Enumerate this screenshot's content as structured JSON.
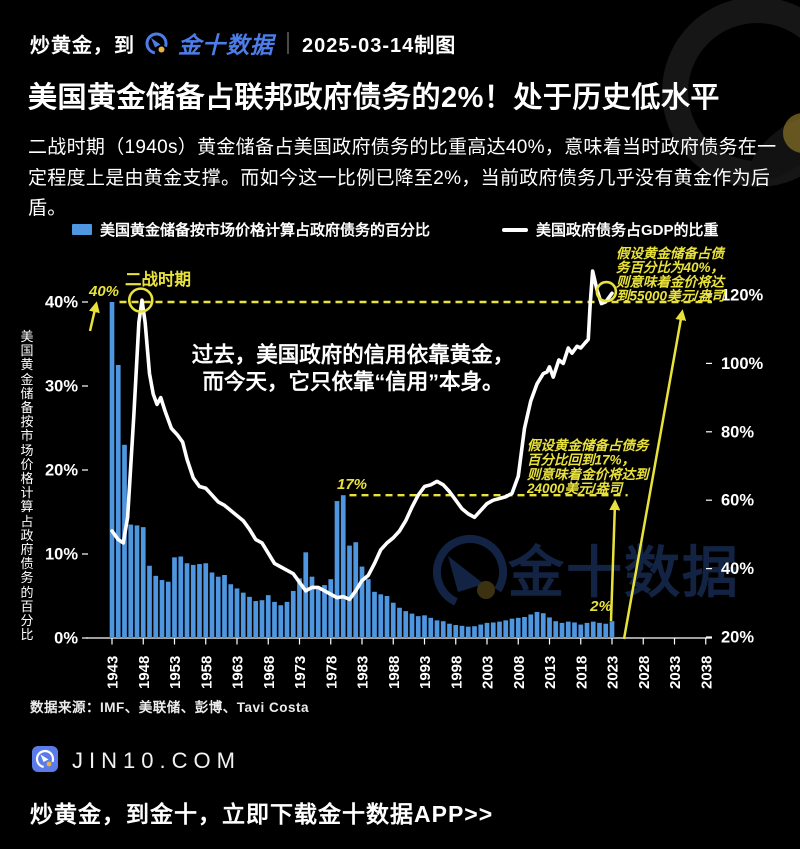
{
  "colors": {
    "yellow": "#e9e23b",
    "bar_blue": "#4e96e0",
    "line_white": "#ffffff",
    "logo_blue": "#4d7de8",
    "watermark_blue": "#24407a",
    "gold": "#8a7526"
  },
  "header": {
    "prefix": "炒黄金，到",
    "logo_text": "金十数据",
    "date_note": "2025-03-14制图"
  },
  "title": "美国黄金储备占联邦政府债务的2%！处于历史低水平",
  "intro": "二战时期（1940s）黄金储备占美国政府债务的比重高达40%，意味着当时政府债务在一定程度上是由黄金支撑。而如今这一比例已降至2%，当前政府债务几乎没有黄金作为后盾。",
  "legend": {
    "bars": "美国黄金储备按市场价格计算占政府债务的百分比",
    "line": "美国政府债务占GDP的比重"
  },
  "chart_data": {
    "type": "combo",
    "bar_series": {
      "name": "美国黄金储备按市场价格计算占政府债务的百分比",
      "axis": "left",
      "unit": "%",
      "start_year": 1943,
      "values": [
        40,
        32.5,
        23,
        13.5,
        13.4,
        13.2,
        8.6,
        7.4,
        6.9,
        6.7,
        9.6,
        9.7,
        8.9,
        8.7,
        8.8,
        8.9,
        7.8,
        7.3,
        7.5,
        6.4,
        5.9,
        5.4,
        4.9,
        4.4,
        4.5,
        5.1,
        4.3,
        3.9,
        4.3,
        5.6,
        7.1,
        10.2,
        7.3,
        6.1,
        6.3,
        7.0,
        16.3,
        17,
        11,
        11.4,
        8.5,
        7,
        5.5,
        5.2,
        5,
        4.2,
        3.6,
        3.2,
        2.9,
        2.6,
        2.7,
        2.4,
        2.1,
        2,
        1.7,
        1.55,
        1.45,
        1.35,
        1.4,
        1.6,
        1.8,
        1.85,
        1.95,
        2.1,
        2.3,
        2.4,
        2.5,
        2.8,
        3.1,
        2.95,
        2.45,
        2,
        1.8,
        1.95,
        1.85,
        1.6,
        1.8,
        1.95,
        1.8,
        1.7,
        2
      ]
    },
    "line_series": {
      "name": "美国政府债务占GDP的比重",
      "axis": "right",
      "unit": "%",
      "points": [
        [
          1943,
          51
        ],
        [
          1944,
          48.5
        ],
        [
          1944.8,
          47.5
        ],
        [
          1945.5,
          55
        ],
        [
          1946.5,
          85
        ],
        [
          1947.3,
          112
        ],
        [
          1947.8,
          118.5
        ],
        [
          1948.3,
          112
        ],
        [
          1949,
          97
        ],
        [
          1949.6,
          91
        ],
        [
          1950.2,
          88
        ],
        [
          1950.8,
          90
        ],
        [
          1951.5,
          86
        ],
        [
          1952.5,
          81
        ],
        [
          1953.5,
          79
        ],
        [
          1954.3,
          77
        ],
        [
          1955,
          72
        ],
        [
          1956,
          66.5
        ],
        [
          1957,
          64
        ],
        [
          1958,
          63.5
        ],
        [
          1959,
          61.5
        ],
        [
          1960,
          59.5
        ],
        [
          1961,
          58.5
        ],
        [
          1962,
          57
        ],
        [
          1963,
          55.5
        ],
        [
          1964,
          54
        ],
        [
          1965,
          51.5
        ],
        [
          1966,
          48.5
        ],
        [
          1967,
          47.5
        ],
        [
          1968,
          44.5
        ],
        [
          1969,
          41.5
        ],
        [
          1970,
          40.5
        ],
        [
          1971,
          39.5
        ],
        [
          1972,
          38.5
        ],
        [
          1973,
          36
        ],
        [
          1974,
          33.5
        ],
        [
          1975,
          34.5
        ],
        [
          1976,
          34.5
        ],
        [
          1977,
          33.5
        ],
        [
          1978,
          32.5
        ],
        [
          1979,
          31.5
        ],
        [
          1980,
          31.8
        ],
        [
          1981,
          31
        ],
        [
          1982,
          33.5
        ],
        [
          1983,
          36.5
        ],
        [
          1984,
          38
        ],
        [
          1985,
          41.5
        ],
        [
          1986,
          45.5
        ],
        [
          1987,
          47.5
        ],
        [
          1988,
          49
        ],
        [
          1989,
          51
        ],
        [
          1990,
          54
        ],
        [
          1991,
          58
        ],
        [
          1992,
          61.5
        ],
        [
          1993,
          64
        ],
        [
          1994,
          64.5
        ],
        [
          1995,
          65.5
        ],
        [
          1996,
          64.5
        ],
        [
          1997,
          62.5
        ],
        [
          1998,
          60
        ],
        [
          1999,
          57.5
        ],
        [
          2000,
          56
        ],
        [
          2001,
          55
        ],
        [
          2002,
          57
        ],
        [
          2003,
          59
        ],
        [
          2004,
          60
        ],
        [
          2005,
          60.5
        ],
        [
          2006,
          61
        ],
        [
          2007,
          62
        ],
        [
          2008,
          67
        ],
        [
          2009,
          81
        ],
        [
          2010,
          89
        ],
        [
          2011,
          94
        ],
        [
          2012,
          97
        ],
        [
          2012.6,
          97.5
        ],
        [
          2013,
          99
        ],
        [
          2013.6,
          96
        ],
        [
          2014.5,
          101
        ],
        [
          2015.2,
          100
        ],
        [
          2016,
          104.5
        ],
        [
          2016.6,
          103
        ],
        [
          2017.4,
          105
        ],
        [
          2018,
          104.5
        ],
        [
          2018.7,
          106
        ],
        [
          2019.2,
          107
        ],
        [
          2019.5,
          117
        ],
        [
          2019.9,
          127
        ],
        [
          2020.6,
          121.5
        ],
        [
          2021.3,
          117.5
        ],
        [
          2022,
          118
        ],
        [
          2022.6,
          119.5
        ],
        [
          2023,
          120.5
        ]
      ]
    },
    "left_axis": {
      "title": "美国黄金储备按市场价格计算占政府债务的百分比",
      "min": 0,
      "max": 40,
      "ticks": [
        {
          "v": 40,
          "label": "40%"
        },
        {
          "v": 30,
          "label": "30%"
        },
        {
          "v": 20,
          "label": "20%"
        },
        {
          "v": 10,
          "label": "10%"
        },
        {
          "v": 0,
          "label": "0%"
        }
      ]
    },
    "right_axis": {
      "min": 20,
      "max": 120,
      "ticks": [
        {
          "v": 120,
          "label": "120%"
        },
        {
          "v": 100,
          "label": "100%"
        },
        {
          "v": 80,
          "label": "80%"
        },
        {
          "v": 60,
          "label": "60%"
        },
        {
          "v": 40,
          "label": "40%"
        },
        {
          "v": 20,
          "label": "20%"
        }
      ]
    },
    "x_axis": {
      "tick_years": [
        1943,
        1948,
        1953,
        1958,
        1963,
        1968,
        1973,
        1978,
        1983,
        1988,
        1993,
        1998,
        2003,
        2008,
        2013,
        2018,
        2023,
        2028,
        2033,
        2038
      ]
    },
    "annotations": {
      "ww2": {
        "label": "二战时期",
        "circle_year": 1947.6,
        "circle_value": 118.5
      },
      "peak_40": {
        "label": "40%",
        "value": 40,
        "dash_from_year": 1944.2,
        "dash_to_year": 2039
      },
      "level_17": {
        "label": "17%",
        "value": 17,
        "dash_from_year": 1981,
        "dash_to_year": 2025.5
      },
      "latest": {
        "label": "2%",
        "year": 2023,
        "value": 2
      },
      "end_circle": {
        "year": 2022.1,
        "value": 121
      },
      "note_40": {
        "lines": [
          "假设黄金储备占债",
          "务百分比为40%，",
          "则意味着金价将达",
          "到55000美元/盎司"
        ]
      },
      "note_17": {
        "lines": [
          "假设黄金储备占债务",
          "百分比回到17%，",
          "则意味着金价将达到",
          "24000美元/盎司"
        ]
      },
      "quote": {
        "lines": [
          "过去，美国政府的信用依靠黄金，",
          "而今天，它只依靠“信用”本身。"
        ]
      }
    }
  },
  "watermark": {
    "text": "金十数据"
  },
  "source": "数据来源：IMF、美联储、彭博、Tavi Costa",
  "footer": {
    "site": "JIN10.COM",
    "cta": "炒黄金，到金十，立即下载金十数据APP>>"
  }
}
